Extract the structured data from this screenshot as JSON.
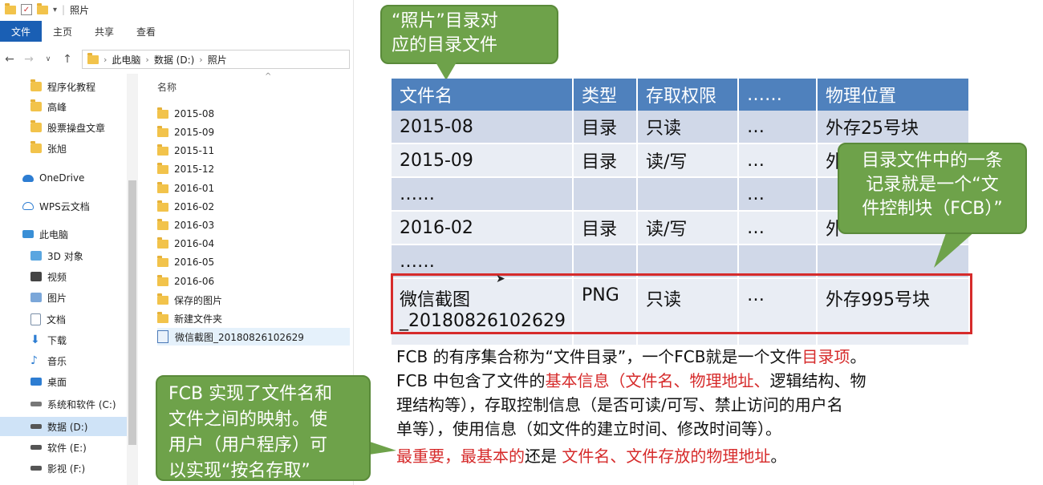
{
  "explorer": {
    "title": "照片",
    "ribbon_tabs": [
      "文件",
      "主页",
      "共享",
      "查看"
    ],
    "breadcrumb": [
      "此电脑",
      "数据 (D:)",
      "照片"
    ],
    "sidebar": [
      {
        "label": "程序化教程",
        "icon": "folder-icon"
      },
      {
        "label": "高峰",
        "icon": "folder-icon"
      },
      {
        "label": "股票操盘文章",
        "icon": "folder-icon"
      },
      {
        "label": "张旭",
        "icon": "folder-icon"
      },
      {
        "label": "OneDrive",
        "icon": "cloud-icon"
      },
      {
        "label": "WPS云文档",
        "icon": "cloud-icon"
      },
      {
        "label": "此电脑",
        "icon": "computer-icon"
      },
      {
        "label": "3D 对象",
        "icon": "cube-icon"
      },
      {
        "label": "视频",
        "icon": "video-icon"
      },
      {
        "label": "图片",
        "icon": "picture-icon"
      },
      {
        "label": "文档",
        "icon": "document-icon"
      },
      {
        "label": "下载",
        "icon": "download-icon"
      },
      {
        "label": "音乐",
        "icon": "music-icon"
      },
      {
        "label": "桌面",
        "icon": "desktop-icon"
      },
      {
        "label": "系统和软件 (C:)",
        "icon": "drive-icon"
      },
      {
        "label": "数据 (D:)",
        "icon": "drive-icon"
      },
      {
        "label": "软件 (E:)",
        "icon": "drive-icon"
      },
      {
        "label": "影视 (F:)",
        "icon": "drive-icon"
      }
    ],
    "column_name": "名称",
    "files": [
      "2015-08",
      "2015-09",
      "2015-11",
      "2015-12",
      "2016-01",
      "2016-02",
      "2016-03",
      "2016-04",
      "2016-05",
      "2016-06",
      "保存的图片",
      "新建文件夹",
      "微信截图_20180826102629"
    ]
  },
  "slide": {
    "callout_top": [
      "“照片”目录对",
      "应的目录文件"
    ],
    "callout_right": [
      "目录文件中的一条",
      "记录就是一个“文",
      "件控制块（FCB）”"
    ],
    "callout_bottom": [
      "FCB 实现了文件名和",
      "文件之间的映射。使",
      "用户（用户程序）可",
      "以实现“按名存取”"
    ],
    "table": {
      "headers": [
        "文件名",
        "类型",
        "存取权限",
        "……",
        "物理位置"
      ],
      "rows": [
        [
          "2015-08",
          "目录",
          "只读",
          "…",
          "外存25号块"
        ],
        [
          "2015-09",
          "目录",
          "读/写",
          "…",
          "外"
        ],
        [
          "……",
          "",
          "",
          "…",
          ""
        ],
        [
          "2016-02",
          "目录",
          "读/写",
          "…",
          "外"
        ],
        [
          "……",
          "",
          "",
          "",
          ""
        ]
      ],
      "last_row": {
        "name_1": "微信截图",
        "name_2": "_20180826102629",
        "type": "PNG",
        "perm": "只读",
        "etc": "…",
        "loc": "外存995号块"
      }
    },
    "para": {
      "l1_a": "FCB 的有序集合称为“文件目录”，一个FCB就是一个文件",
      "l1_b": "目录项",
      "l1_c": "。",
      "l2_a": "FCB 中包含了文件的",
      "l2_b": "基本信息（文件名、物理地址、",
      "l2_c": "逻辑结构、物",
      "l3": "理结构等），存取控制信息（是否可读/可写、禁止访问的用户名",
      "l4": "单等），使用信息（如文件的建立时间、修改时间等）。",
      "l5_a": "最重要，最基本的",
      "l5_b": "还是",
      "l5_c": "文件名、文件存放的物理地址",
      "l5_d": "。"
    }
  }
}
